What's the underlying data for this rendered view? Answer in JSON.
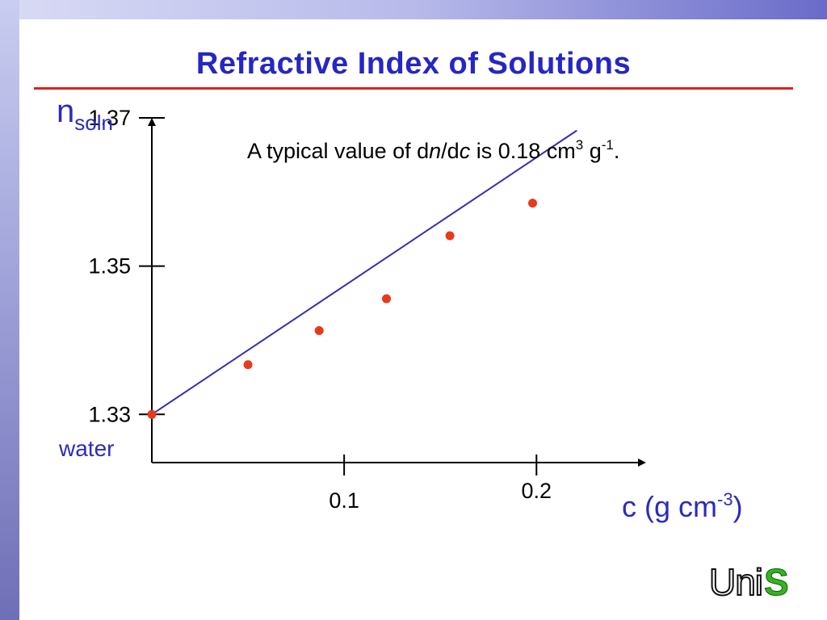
{
  "slide": {
    "title": "Refractive Index of Solutions",
    "annotation": {
      "prefix": "A typical value of d",
      "n": "n",
      "slash": "/d",
      "c": "c",
      "mid": " is 0.18 cm",
      "exp1": "3",
      "g": " g",
      "exp2": "-1",
      "end": "."
    },
    "water_label": "water",
    "logo": {
      "uni": "Uni",
      "s": "S"
    }
  },
  "chart_data": {
    "type": "scatter",
    "ylabel": {
      "main": "n",
      "sub": "soln"
    },
    "xlabel": {
      "main": "c (g cm",
      "sup": "-3",
      "end": ")"
    },
    "x_ticks": [
      {
        "value": 0.1,
        "label": "0.1"
      },
      {
        "value": 0.2,
        "label": "0.2"
      }
    ],
    "y_ticks": [
      {
        "value": 1.33,
        "label": "1.33"
      },
      {
        "value": 1.35,
        "label": "1.35"
      },
      {
        "value": 1.37,
        "label": "1.37"
      }
    ],
    "xlim": [
      0,
      0.257
    ],
    "ylim": [
      1.3235,
      1.37
    ],
    "points": [
      {
        "x": 0.0,
        "y": 1.33
      },
      {
        "x": 0.05,
        "y": 1.3367
      },
      {
        "x": 0.087,
        "y": 1.3413
      },
      {
        "x": 0.122,
        "y": 1.3456
      },
      {
        "x": 0.155,
        "y": 1.3541
      },
      {
        "x": 0.198,
        "y": 1.3585
      }
    ],
    "fit_line": {
      "x": [
        0.0,
        0.221
      ],
      "y": [
        1.33,
        1.3683
      ]
    },
    "colors": {
      "points": "#e8391d",
      "line": "#3030b0",
      "axis": "#000000"
    }
  }
}
